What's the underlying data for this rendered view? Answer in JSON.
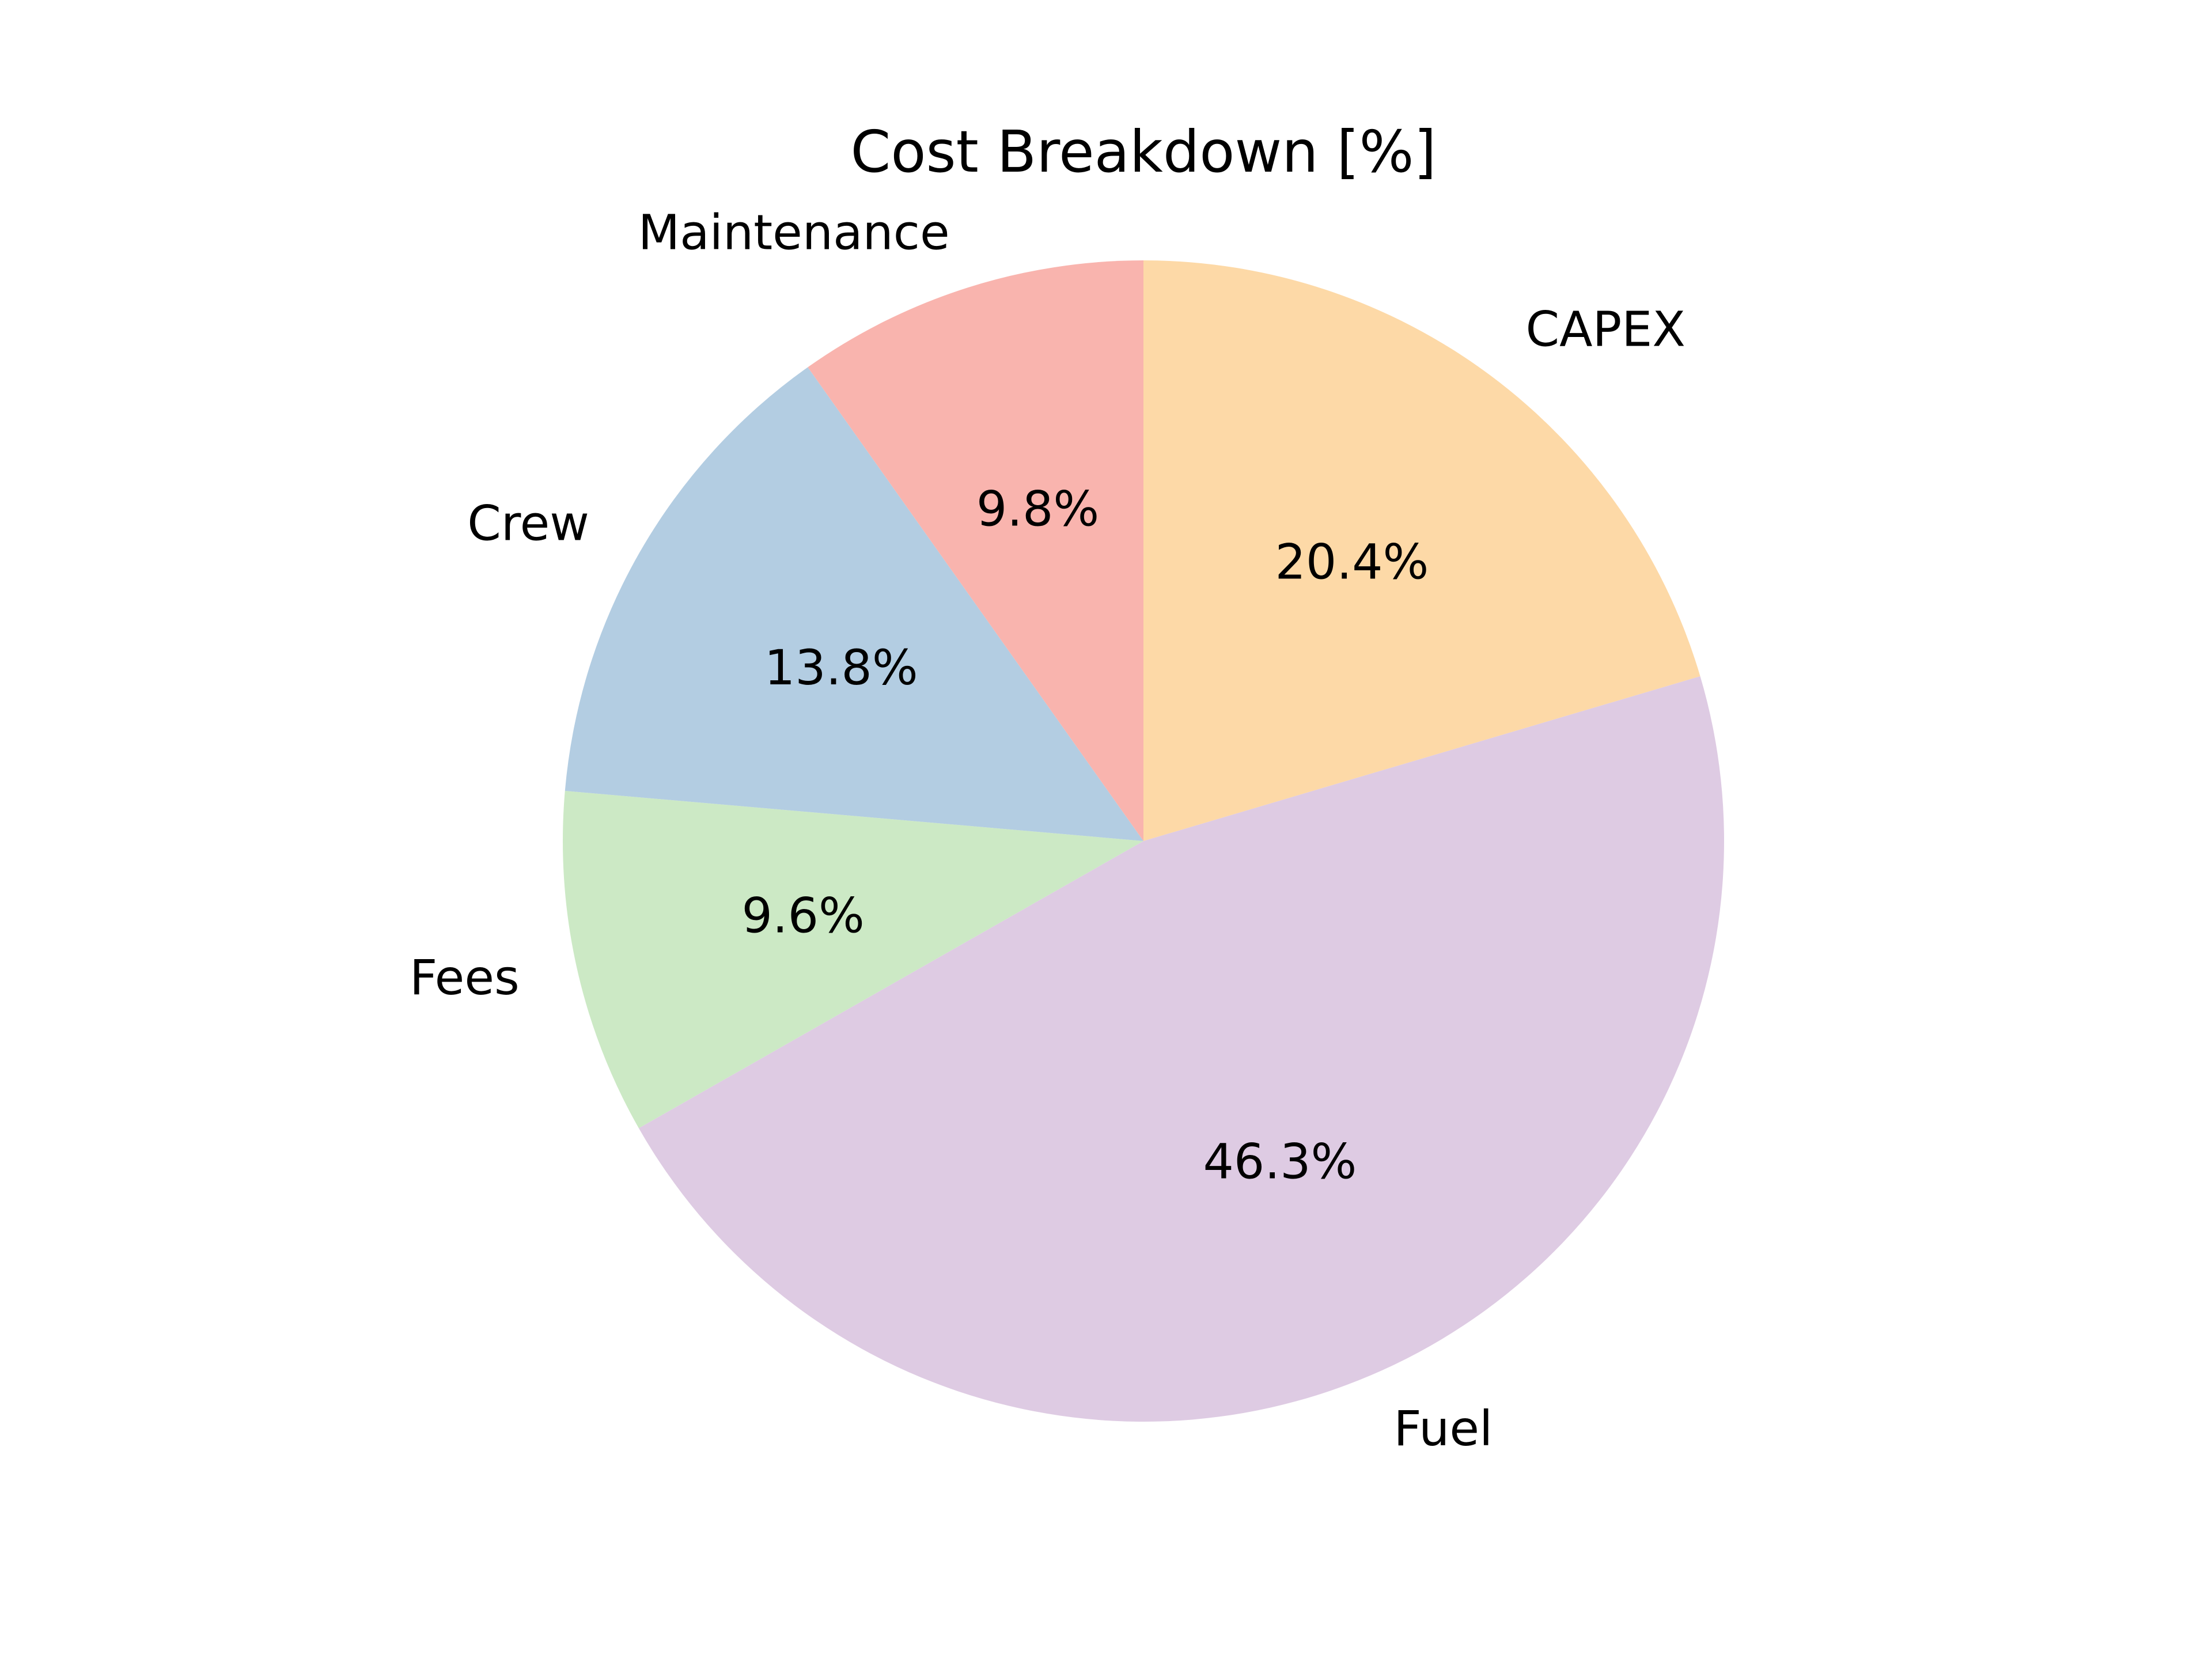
{
  "chart_data": {
    "type": "pie",
    "title": "Cost Breakdown [%]",
    "start_angle": 90,
    "direction": "clockwise",
    "slices": [
      {
        "label": "CAPEX",
        "value": 20.4,
        "pct_label": "20.4%",
        "color": "#fdd9a7"
      },
      {
        "label": "Fuel",
        "value": 46.3,
        "pct_label": "46.3%",
        "color": "#decbe3"
      },
      {
        "label": "Fees",
        "value": 9.6,
        "pct_label": "9.6%",
        "color": "#cce9c5"
      },
      {
        "label": "Crew",
        "value": 13.8,
        "pct_label": "13.8%",
        "color": "#b3cde2"
      },
      {
        "label": "Maintenance",
        "value": 9.8,
        "pct_label": "9.8%",
        "color": "#f9b4ae"
      }
    ]
  }
}
